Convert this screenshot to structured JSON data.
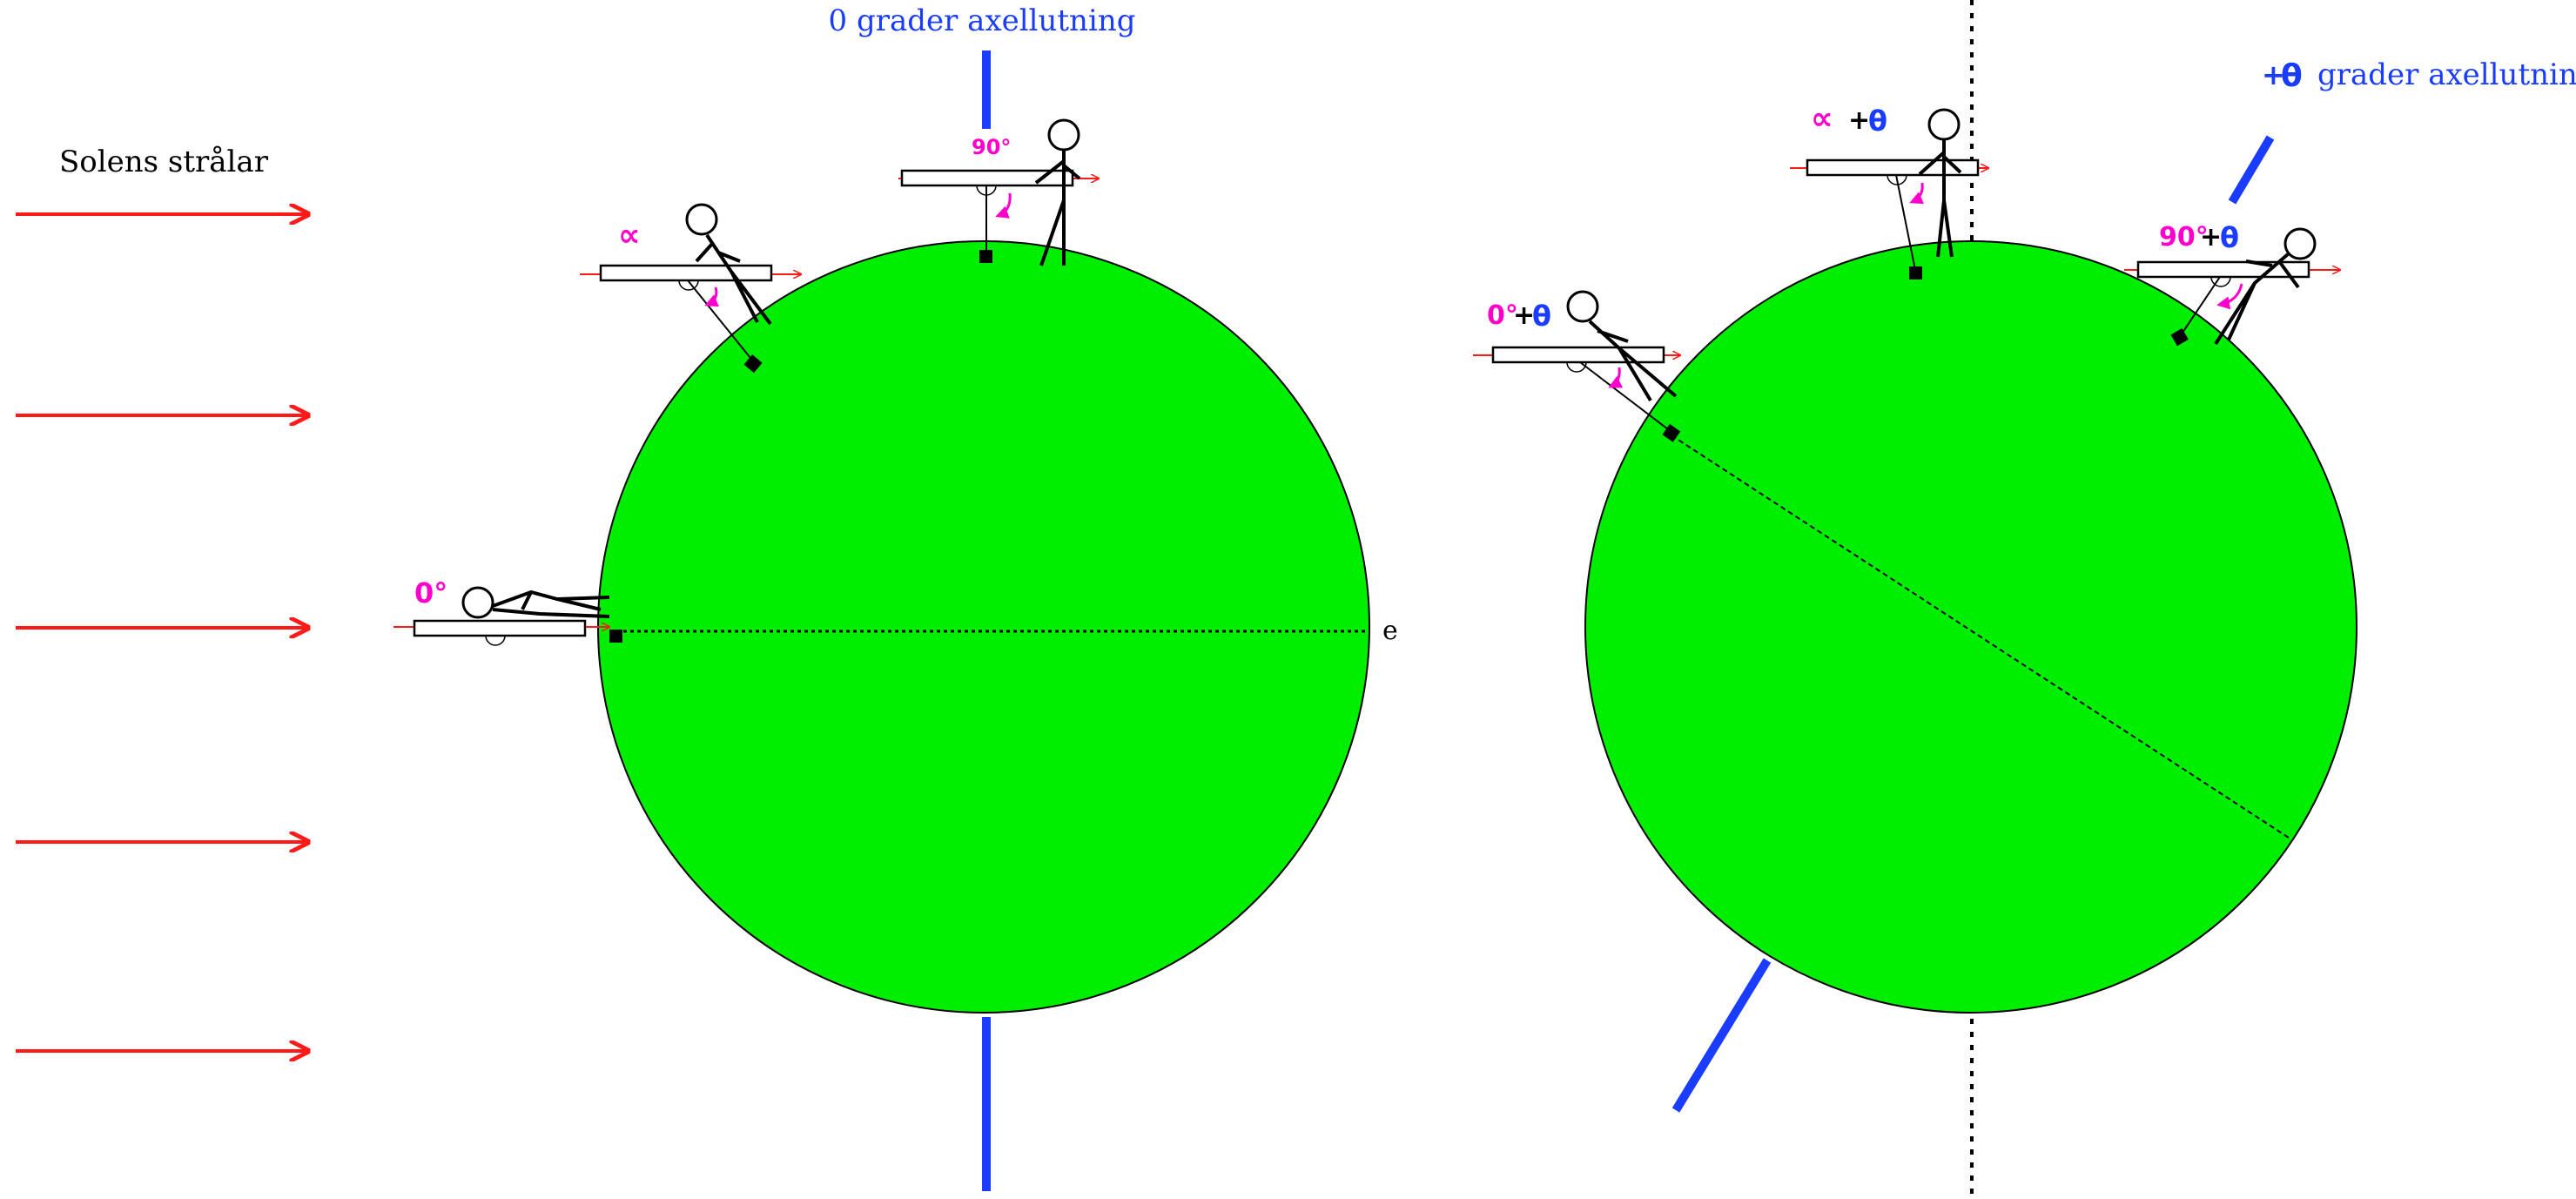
{
  "sun": {
    "label": "Solens strålar",
    "ray_count": 5,
    "ray_color": "#ff1a1a"
  },
  "left_earth": {
    "title": "0 grader axellutning",
    "equator_label": "e",
    "angle_equator": "0°",
    "angle_mid": "∝",
    "angle_pole": "90°",
    "fill_color": "#00ee00",
    "axis_color": "#1a3cff",
    "axial_tilt_deg": 0
  },
  "right_earth": {
    "title_prefix": "+",
    "title_theta": "θ",
    "title_rest": "grader axellutning",
    "angle_low_base": "0°",
    "angle_mid_base": "∝",
    "angle_high_base": "90°",
    "plus": "+",
    "theta": "θ",
    "fill_color": "#00ee00",
    "axis_color": "#1a3cff"
  },
  "annotation_color": "#ff00cc"
}
